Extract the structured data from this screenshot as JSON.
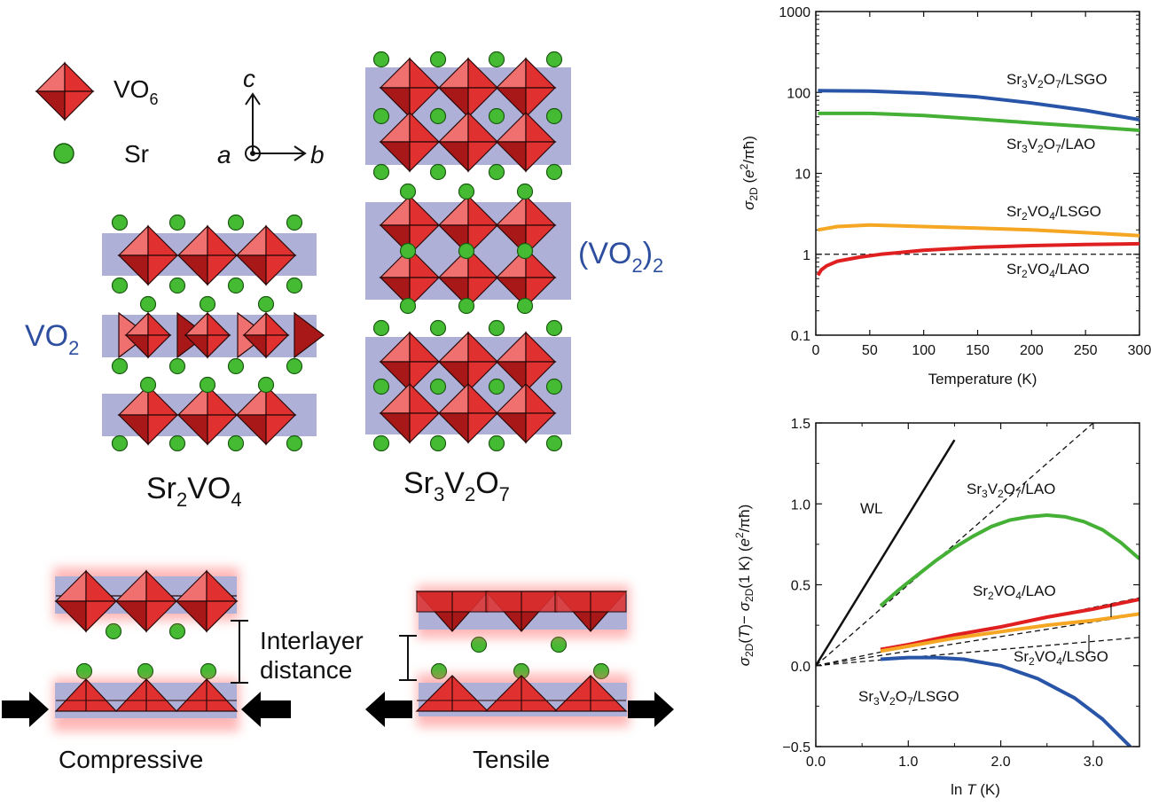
{
  "structure": {
    "legend": {
      "octahedron_label": "VO",
      "octahedron_sub": "6",
      "sr_label": "Sr"
    },
    "axes_labels": {
      "c": "c",
      "a": "a",
      "b": "b"
    },
    "sr2vo4": {
      "main": "Sr",
      "s1": "2",
      "mid": "VO",
      "s2": "4"
    },
    "sr3v2o7": {
      "p1": "Sr",
      "s1": "3",
      "p2": "V",
      "s2": "2",
      "p3": "O",
      "s3": "7"
    },
    "vo2": {
      "main": "VO",
      "sub": "2"
    },
    "vo2_2": {
      "main": "(VO",
      "sub1": "2",
      "close": ")",
      "sub2": "2"
    },
    "interlayer_line1": "Interlayer",
    "interlayer_line2": "distance",
    "compressive": "Compressive",
    "tensile": "Tensile",
    "colors": {
      "octahedron_light": "#f07070",
      "octahedron_mid": "#e03030",
      "octahedron_dark": "#a81818",
      "layer_band": "#aeb0d8",
      "sr": "#44bb33",
      "blue_text": "#2e4fa0"
    }
  },
  "chart_data": [
    {
      "type": "line",
      "x_label_text": "Temperature (K)",
      "y_label": {
        "sigma": "σ",
        "sub": "2D",
        "unit_open": " (",
        "e": "e",
        "sup": "2",
        "rest": "/πħ)"
      },
      "x_ticks": [
        "0",
        "50",
        "100",
        "150",
        "200",
        "250",
        "300"
      ],
      "y_ticks": [
        "0.1",
        "1",
        "10",
        "100",
        "1000"
      ],
      "xlim": [
        0,
        300
      ],
      "ylim": [
        0.1,
        1000
      ],
      "yscale": "log",
      "reference_line": {
        "y": 1,
        "style": "dashed"
      },
      "series": [
        {
          "color": "#2855a8",
          "label": {
            "a": "Sr",
            "a_sub": "3",
            "b": "V",
            "b_sub": "2",
            "c": "O",
            "c_sub": "7",
            "d": "/LSGO"
          },
          "x": [
            2,
            50,
            100,
            150,
            200,
            250,
            300
          ],
          "values": [
            105,
            104,
            98,
            88,
            74,
            60,
            46
          ]
        },
        {
          "color": "#44b035",
          "label": {
            "a": "Sr",
            "a_sub": "3",
            "b": "V",
            "b_sub": "2",
            "c": "O",
            "c_sub": "7",
            "d": "/LAO"
          },
          "x": [
            2,
            50,
            100,
            150,
            200,
            250,
            300
          ],
          "values": [
            55,
            55,
            52,
            47,
            42,
            38,
            34
          ]
        },
        {
          "color": "#f5a623",
          "label": {
            "a": "Sr",
            "a_sub": "2",
            "b": "VO",
            "b_sub": "4",
            "c": "",
            "c_sub": "",
            "d": "/LSGO"
          },
          "x": [
            2,
            20,
            50,
            100,
            150,
            200,
            250,
            300
          ],
          "values": [
            2.0,
            2.2,
            2.3,
            2.2,
            2.1,
            2.0,
            1.85,
            1.7
          ]
        },
        {
          "color": "#e02020",
          "label": {
            "a": "Sr",
            "a_sub": "2",
            "b": "VO",
            "b_sub": "4",
            "c": "",
            "c_sub": "",
            "d": "/LAO"
          },
          "x": [
            2,
            5,
            10,
            20,
            40,
            60,
            100,
            150,
            200,
            250,
            300
          ],
          "values": [
            0.55,
            0.64,
            0.72,
            0.82,
            0.92,
            1.0,
            1.12,
            1.22,
            1.28,
            1.32,
            1.35
          ]
        }
      ]
    },
    {
      "type": "line",
      "x_label": {
        "pre": "ln ",
        "T": "T",
        "post": " (K)"
      },
      "y_label": {
        "s1": "σ",
        "sub1": "2D",
        "p1": "(",
        "T": "T",
        "p2": ")− ",
        "s2": "σ",
        "sub2": "2D",
        "p3": "(1 K) (",
        "e": "e",
        "sup": "2",
        "rest": "/πħ)"
      },
      "x_ticks": [
        "0.0",
        "1.0",
        "2.0",
        "3.0"
      ],
      "y_ticks": [
        "−0.5",
        "0.0",
        "0.5",
        "1.0",
        "1.5"
      ],
      "xlim": [
        0,
        3.5
      ],
      "ylim": [
        -0.5,
        1.5
      ],
      "wl_label": "WL",
      "fits": [
        {
          "slope": 0.93,
          "x_end": 1.5,
          "style": "solid"
        },
        {
          "slope": 0.5,
          "x_end": 3.5,
          "style": "dashed"
        },
        {
          "slope": 0.12,
          "x_end": 3.5,
          "style": "dashed"
        },
        {
          "slope": 0.09,
          "x_end": 3.5,
          "style": "dashed"
        },
        {
          "slope": 0.05,
          "x_end": 3.5,
          "style": "dashed"
        }
      ],
      "series": [
        {
          "color": "#44b035",
          "label": {
            "a": "Sr",
            "a_sub": "3",
            "b": "V",
            "b_sub": "2",
            "c": "O",
            "c_sub": "7",
            "d": "/LAO"
          },
          "x": [
            0.7,
            0.9,
            1.1,
            1.3,
            1.5,
            1.7,
            1.9,
            2.1,
            2.3,
            2.5,
            2.7,
            2.9,
            3.1,
            3.3,
            3.5
          ],
          "values": [
            0.37,
            0.47,
            0.56,
            0.65,
            0.73,
            0.8,
            0.86,
            0.9,
            0.92,
            0.93,
            0.92,
            0.89,
            0.84,
            0.76,
            0.66
          ]
        },
        {
          "color": "#e02020",
          "label": {
            "a": "Sr",
            "a_sub": "2",
            "b": "VO",
            "b_sub": "4",
            "c": "",
            "c_sub": "",
            "d": "/LAO"
          },
          "x": [
            0.7,
            1.0,
            1.5,
            2.0,
            2.5,
            3.0,
            3.5
          ],
          "values": [
            0.1,
            0.13,
            0.19,
            0.24,
            0.3,
            0.35,
            0.41
          ]
        },
        {
          "color": "#f5a623",
          "label": {
            "a": "Sr",
            "a_sub": "2",
            "b": "VO",
            "b_sub": "4",
            "c": "",
            "c_sub": "",
            "d": "/LSGO"
          },
          "x": [
            0.7,
            1.0,
            1.5,
            2.0,
            2.5,
            3.0,
            3.5
          ],
          "values": [
            0.09,
            0.12,
            0.17,
            0.21,
            0.25,
            0.28,
            0.32
          ]
        },
        {
          "color": "#2855a8",
          "label": {
            "a": "Sr",
            "a_sub": "3",
            "b": "V",
            "b_sub": "2",
            "c": "O",
            "c_sub": "7",
            "d": "/LSGO"
          },
          "x": [
            0.7,
            1.0,
            1.3,
            1.6,
            2.0,
            2.4,
            2.8,
            3.1,
            3.4
          ],
          "values": [
            0.04,
            0.05,
            0.05,
            0.04,
            0.0,
            -0.08,
            -0.2,
            -0.33,
            -0.5
          ]
        }
      ]
    }
  ]
}
